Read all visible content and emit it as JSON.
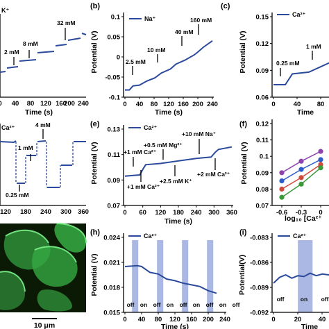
{
  "colors": {
    "trace": "#2b4a9b",
    "shade": "#aab8e3",
    "micro_bg": "#0a1a05",
    "micro_cell": "#39b54a",
    "purple": "#8e44ad",
    "blue": "#2d5ec8",
    "green": "#3a9a3a",
    "red": "#d04a3a"
  },
  "panel_labels": {
    "b": "(b)",
    "c": "(c)",
    "e": "(e)",
    "f": "(f)",
    "h": "(h)",
    "i": "(i)"
  },
  "chart_data": [
    {
      "id": "a",
      "type": "line",
      "legend": "K⁺",
      "xlabel": "Time (s)",
      "ylabel": "",
      "xlim": [
        0,
        240
      ],
      "xticks": [
        "0",
        "40",
        "80",
        "120",
        "160",
        "200",
        "240"
      ],
      "annotations": [
        "2 mM",
        "8 mM",
        "32 mM"
      ],
      "series": [
        {
          "values_t": [
            0,
            18,
            30,
            60,
            85,
            115,
            140,
            170,
            195,
            225,
            240
          ],
          "values_level": [
            0,
            0,
            1,
            1,
            2,
            2,
            3,
            3,
            4,
            4,
            4
          ]
        }
      ]
    },
    {
      "id": "b",
      "type": "line",
      "legend": "Na⁺",
      "xlabel": "Time (s)",
      "ylabel": "Potential (V)",
      "xlim": [
        0,
        240
      ],
      "ylim": [
        -0.1,
        0.1
      ],
      "xticks": [
        "0",
        "40",
        "80",
        "120",
        "160",
        "200",
        "240"
      ],
      "yticks": [
        "-0.1",
        "-0.05",
        "0",
        "0.05",
        "0.1"
      ],
      "annotations": [
        "2.5 mM",
        "10 mM",
        "40 mM",
        "160 mM"
      ],
      "series": [
        {
          "t": [
            0,
            12,
            22,
            40,
            60,
            82,
            100,
            125,
            140,
            165,
            190,
            200,
            215,
            240
          ],
          "v": [
            -0.082,
            -0.082,
            -0.072,
            -0.07,
            -0.06,
            -0.052,
            -0.04,
            -0.03,
            -0.018,
            -0.008,
            0.005,
            0.012,
            0.024,
            0.04
          ]
        }
      ]
    },
    {
      "id": "c",
      "type": "line",
      "legend": "Ca²⁺",
      "xlabel": "Time",
      "ylabel": "Potential (V)",
      "ylim": [
        0.06,
        0.15
      ],
      "xticks": [
        "0",
        "40",
        "80"
      ],
      "yticks": [
        "0.06",
        "0.09",
        "0.12",
        "0.15"
      ],
      "annotations": [
        "0.25 mM",
        "1 mM"
      ],
      "series": [
        {
          "t": [
            0,
            20,
            32,
            60,
            80,
            100
          ],
          "v": [
            0.074,
            0.074,
            0.086,
            0.088,
            0.094,
            0.1
          ]
        }
      ]
    },
    {
      "id": "d",
      "type": "line",
      "legend": "Ca²⁺",
      "xlabel": "",
      "xlim": [
        0,
        360
      ],
      "xticks": [
        "120",
        "180",
        "240",
        "300",
        "360"
      ],
      "annotations": [
        "4 mM",
        "1 mM",
        "0.25 mM"
      ]
    },
    {
      "id": "e",
      "type": "line",
      "legend": "Ca²⁺",
      "xlabel": "Time (s)",
      "ylabel": "Potential (V)",
      "xlim": [
        0,
        360
      ],
      "ylim": [
        0.07,
        0.13
      ],
      "xticks": [
        "0",
        "60",
        "120",
        "180",
        "240",
        "300",
        "360"
      ],
      "yticks": [
        "0.07",
        "0.09",
        "0.11",
        "0.13"
      ],
      "annotations": [
        "+1 mM Ca²⁺",
        "+0.5 mM Mg²⁺",
        "+10 mM Na⁺",
        "+2 mM Ca²⁺",
        "+1 mM Ca²⁺",
        "+2.5 mM K⁺"
      ],
      "series": [
        {
          "t": [
            0,
            50,
            62,
            70,
            120,
            240,
            290,
            305,
            315,
            360
          ],
          "v": [
            0.093,
            0.094,
            0.099,
            0.102,
            0.103,
            0.107,
            0.108,
            0.112,
            0.114,
            0.116
          ]
        }
      ]
    },
    {
      "id": "f",
      "type": "scatter",
      "xlabel": "log₁₀ [Ca²⁺",
      "ylabel": "Potential (V)",
      "ylim": [
        0.07,
        0.12
      ],
      "xticks": [
        "-0.6",
        "-0.3",
        "0"
      ],
      "yticks": [
        "0.07",
        "0.08",
        "0.09",
        "0.1",
        "0.11",
        "0.12"
      ],
      "series": [
        {
          "color": "purple",
          "x": [
            -0.6,
            -0.3,
            0.0
          ],
          "y": [
            0.09,
            0.097,
            0.103
          ]
        },
        {
          "color": "blue",
          "x": [
            -0.6,
            -0.3,
            0.0
          ],
          "y": [
            0.085,
            0.092,
            0.098
          ]
        },
        {
          "color": "red",
          "x": [
            -0.6,
            -0.3,
            0.0
          ],
          "y": [
            0.08,
            0.087,
            0.095
          ]
        },
        {
          "color": "green",
          "x": [
            -0.6,
            -0.3,
            0.0
          ],
          "y": [
            0.075,
            0.083,
            0.093
          ]
        }
      ]
    },
    {
      "id": "h",
      "type": "line",
      "legend": "Ca²⁺",
      "xlabel": "Time (s)",
      "ylabel": "Potential (V)",
      "xlim": [
        0,
        240
      ],
      "ylim": [
        0.015,
        0.024
      ],
      "xticks": [
        "0",
        "40",
        "80",
        "120",
        "160",
        "200",
        "240"
      ],
      "yticks": [
        "0.015",
        "0.018",
        "0.021",
        "0.024"
      ],
      "onoff": [
        "off",
        "on",
        "off",
        "on",
        "off",
        "on",
        "off",
        "on",
        "off"
      ],
      "series": [
        {
          "t": [
            0,
            30,
            40,
            60,
            80,
            100,
            120,
            140,
            160,
            180,
            200,
            220
          ],
          "v": [
            0.0205,
            0.0206,
            0.0205,
            0.0198,
            0.0196,
            0.019,
            0.0188,
            0.0185,
            0.0183,
            0.0181,
            0.0176,
            0.0173
          ]
        }
      ]
    },
    {
      "id": "i",
      "type": "line",
      "legend": "Ca²⁺",
      "xlabel": "Time",
      "ylabel": "Potential(V)",
      "xlim": [
        0,
        60
      ],
      "ylim": [
        -0.092,
        -0.083
      ],
      "xticks": [
        "0",
        "20",
        "40"
      ],
      "yticks": [
        "-0.092",
        "-0.089",
        "-0.086",
        "-0.083"
      ],
      "onoff": [
        "off",
        "on",
        "off"
      ],
      "series": [
        {
          "t": [
            0,
            5,
            10,
            15,
            20,
            25,
            30,
            35,
            40,
            45,
            50
          ],
          "v": [
            -0.0885,
            -0.0878,
            -0.0875,
            -0.0879,
            -0.0876,
            -0.0877,
            -0.0873,
            -0.0876,
            -0.0874,
            -0.0875,
            -0.0873
          ]
        }
      ]
    }
  ],
  "micrograph": {
    "scalebar": "10 μm"
  }
}
